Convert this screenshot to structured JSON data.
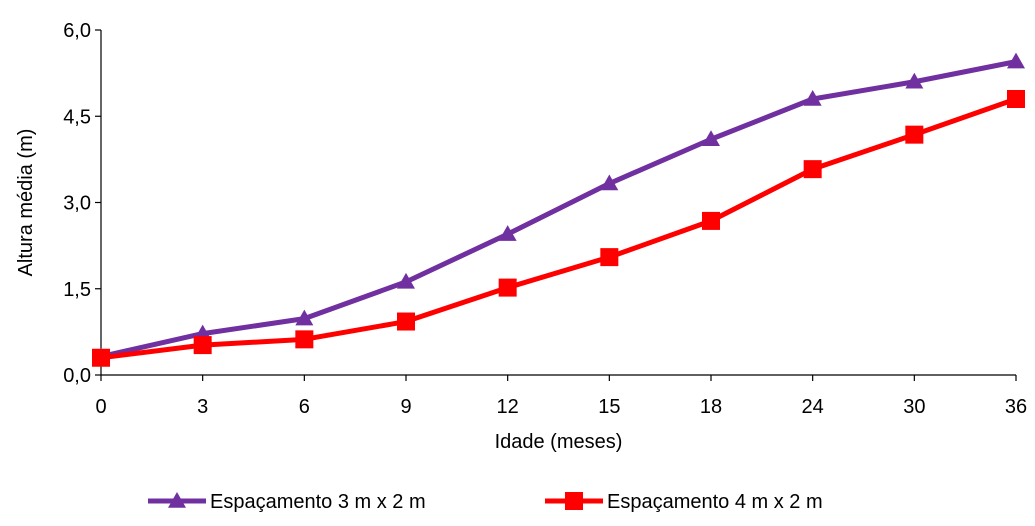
{
  "chart_data": {
    "type": "line",
    "categories": [
      "0",
      "3",
      "6",
      "9",
      "12",
      "15",
      "18",
      "24",
      "30",
      "36"
    ],
    "xlabel": "Idade (meses)",
    "ylabel": "Altura média (m)",
    "ylim": [
      0,
      6
    ],
    "yticks": [
      "0,0",
      "1,5",
      "3,0",
      "4,5",
      "6,0"
    ],
    "ytick_values": [
      0,
      1.5,
      3.0,
      4.5,
      6.0
    ],
    "grid": false,
    "legend_position": "bottom",
    "series": [
      {
        "name": "Espaçamento 3 m x 2 m",
        "marker": "triangle",
        "color": "#7030A0",
        "values": [
          0.32,
          0.72,
          0.98,
          1.62,
          2.45,
          3.33,
          4.1,
          4.8,
          5.1,
          5.45
        ]
      },
      {
        "name": "Espaçamento 4 m x 2 m",
        "marker": "square",
        "color": "#FF0000",
        "values": [
          0.3,
          0.52,
          0.62,
          0.93,
          1.52,
          2.05,
          2.68,
          3.58,
          4.18,
          4.8
        ]
      }
    ]
  }
}
